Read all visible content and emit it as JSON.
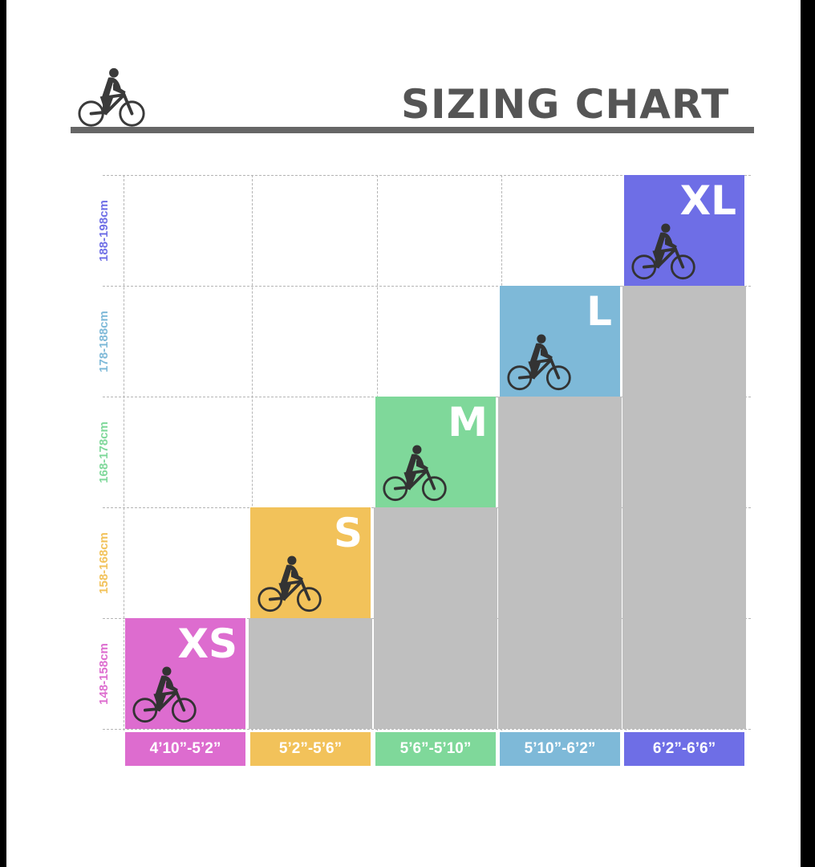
{
  "title": "SIZING CHART",
  "icons": {
    "logo": "cyclist-icon",
    "tile": "cyclist-icon"
  },
  "sizes": [
    {
      "size": "XS",
      "height_cm": "148-158cm",
      "height_ft": "4’10”-5’2”",
      "color": "#DD6CCF"
    },
    {
      "size": "S",
      "height_cm": "158-168cm",
      "height_ft": "5’2”-5’6”",
      "color": "#F2C25A"
    },
    {
      "size": "M",
      "height_cm": "168-178cm",
      "height_ft": "5’6”-5’10”",
      "color": "#7FD89A"
    },
    {
      "size": "L",
      "height_cm": "178-188cm",
      "height_ft": "5’10”-6’2”",
      "color": "#7EB9D8"
    },
    {
      "size": "XL",
      "height_cm": "188-198cm",
      "height_ft": "6’2”-6’6”",
      "color": "#6E6EE6"
    }
  ]
}
